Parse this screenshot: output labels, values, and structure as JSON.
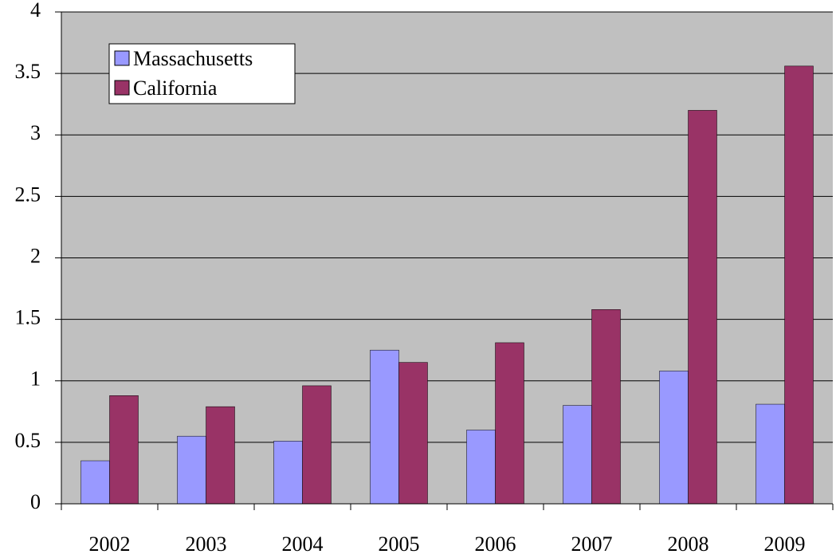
{
  "chart_data": {
    "type": "bar",
    "categories": [
      "2002",
      "2003",
      "2004",
      "2005",
      "2006",
      "2007",
      "2008",
      "2009"
    ],
    "series": [
      {
        "name": "Massachusetts",
        "color": "#9999ff",
        "values": [
          0.35,
          0.55,
          0.51,
          1.25,
          0.6,
          0.8,
          1.08,
          0.81
        ]
      },
      {
        "name": "California",
        "color": "#993366",
        "values": [
          0.88,
          0.79,
          0.96,
          1.15,
          1.31,
          1.58,
          3.2,
          3.56
        ]
      }
    ],
    "ylim": [
      0,
      4
    ],
    "yticks": [
      0,
      0.5,
      1,
      1.5,
      2,
      2.5,
      3,
      3.5,
      4
    ],
    "grid": true,
    "legend": "upper left"
  }
}
